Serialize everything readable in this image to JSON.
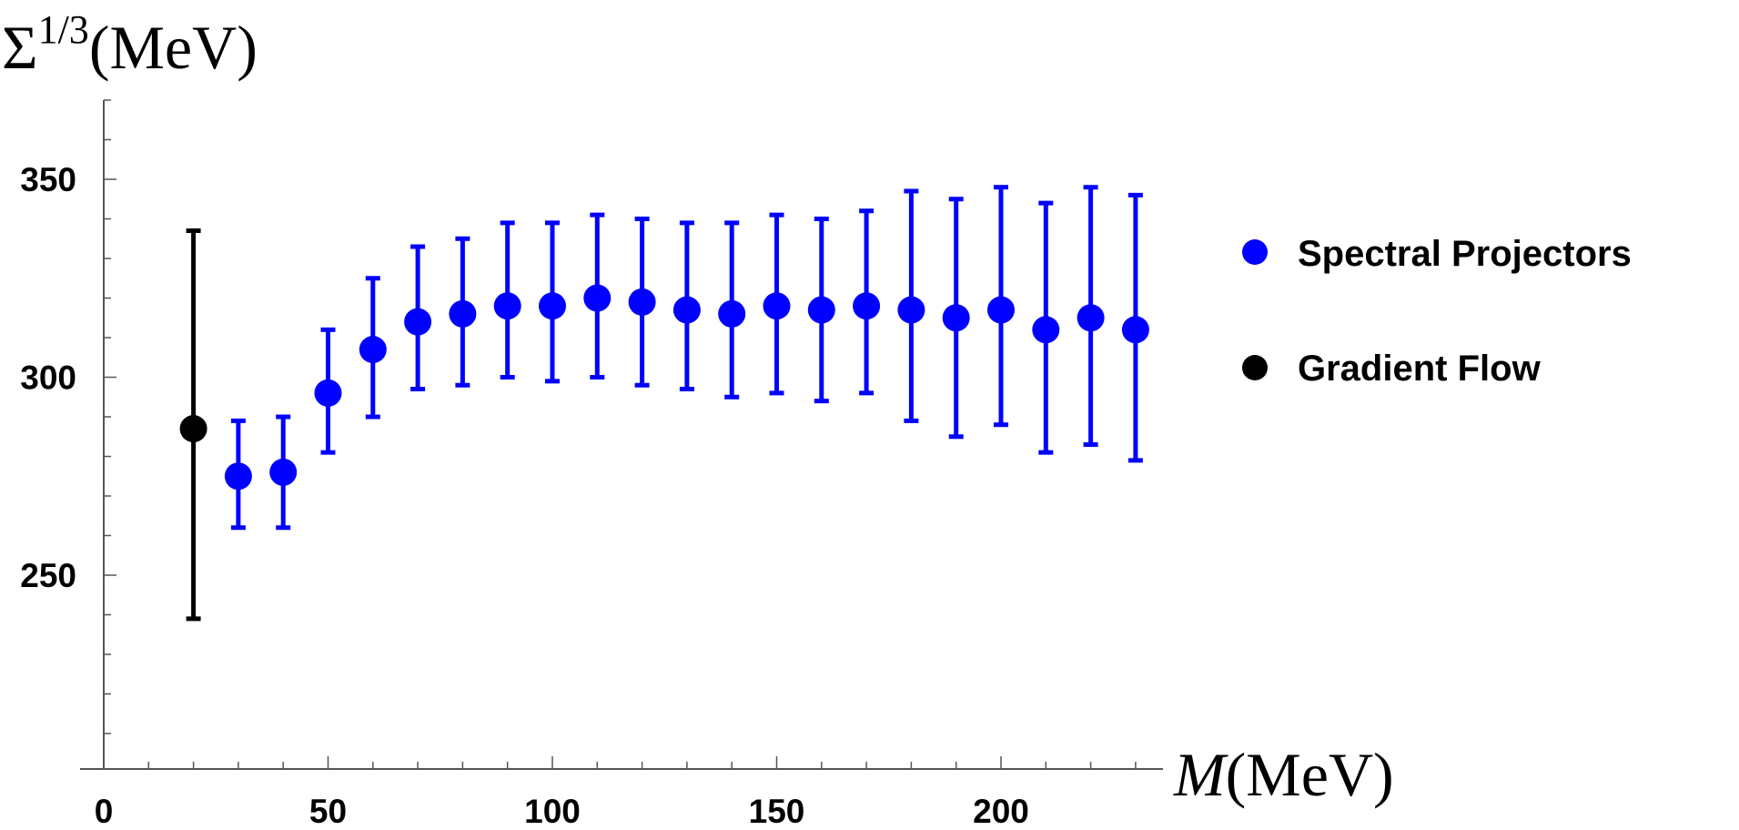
{
  "chart_data": {
    "type": "scatter",
    "title": "",
    "xlabel": {
      "main": "M",
      "unit": "(MeV)"
    },
    "ylabel": {
      "main": "Σ",
      "sup": "1/3",
      "unit": "(MeV)"
    },
    "xlim": [
      0,
      233
    ],
    "ylim": [
      200,
      370
    ],
    "xticks": [
      0,
      50,
      100,
      150,
      200
    ],
    "yticks": [
      250,
      300,
      350
    ],
    "grid": false,
    "legend_position": "right",
    "series": [
      {
        "name": "Spectral Projectors",
        "color": "#0000ff",
        "points": [
          {
            "x": 30,
            "y": 275,
            "lo": 262,
            "hi": 289
          },
          {
            "x": 40,
            "y": 276,
            "lo": 262,
            "hi": 290
          },
          {
            "x": 50,
            "y": 296,
            "lo": 281,
            "hi": 312
          },
          {
            "x": 60,
            "y": 307,
            "lo": 290,
            "hi": 325
          },
          {
            "x": 70,
            "y": 314,
            "lo": 297,
            "hi": 333
          },
          {
            "x": 80,
            "y": 316,
            "lo": 298,
            "hi": 335
          },
          {
            "x": 90,
            "y": 318,
            "lo": 300,
            "hi": 339
          },
          {
            "x": 100,
            "y": 318,
            "lo": 299,
            "hi": 339
          },
          {
            "x": 110,
            "y": 320,
            "lo": 300,
            "hi": 341
          },
          {
            "x": 120,
            "y": 319,
            "lo": 298,
            "hi": 340
          },
          {
            "x": 130,
            "y": 317,
            "lo": 297,
            "hi": 339
          },
          {
            "x": 140,
            "y": 316,
            "lo": 295,
            "hi": 339
          },
          {
            "x": 150,
            "y": 318,
            "lo": 296,
            "hi": 341
          },
          {
            "x": 160,
            "y": 317,
            "lo": 294,
            "hi": 340
          },
          {
            "x": 170,
            "y": 318,
            "lo": 296,
            "hi": 342
          },
          {
            "x": 180,
            "y": 317,
            "lo": 289,
            "hi": 347
          },
          {
            "x": 190,
            "y": 315,
            "lo": 285,
            "hi": 345
          },
          {
            "x": 200,
            "y": 317,
            "lo": 288,
            "hi": 348
          },
          {
            "x": 210,
            "y": 312,
            "lo": 281,
            "hi": 344
          },
          {
            "x": 220,
            "y": 315,
            "lo": 283,
            "hi": 348
          },
          {
            "x": 230,
            "y": 312,
            "lo": 279,
            "hi": 346
          }
        ]
      },
      {
        "name": "Gradient Flow",
        "color": "#000000",
        "points": [
          {
            "x": 20,
            "y": 287,
            "lo": 239,
            "hi": 337
          }
        ]
      }
    ]
  }
}
